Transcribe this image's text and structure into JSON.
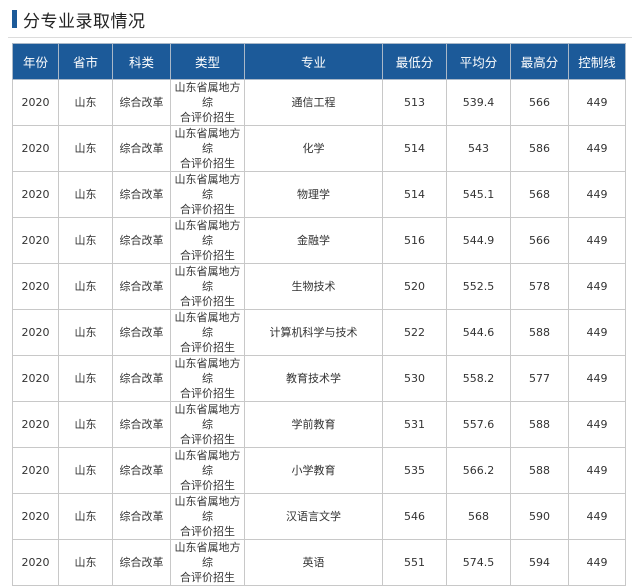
{
  "title": "分专业录取情况",
  "colors": {
    "header_bg": "#1c5a99",
    "header_text": "#ffffff",
    "accent": "#1c5a99"
  },
  "columns": [
    "年份",
    "省市",
    "科类",
    "类型",
    "专业",
    "最低分",
    "平均分",
    "最高分",
    "控制线"
  ],
  "rows": [
    [
      "2020",
      "山东",
      "综合改革",
      [
        "山东省属地方综",
        "合评价招生"
      ],
      "通信工程",
      "513",
      "539.4",
      "566",
      "449"
    ],
    [
      "2020",
      "山东",
      "综合改革",
      [
        "山东省属地方综",
        "合评价招生"
      ],
      "化学",
      "514",
      "543",
      "586",
      "449"
    ],
    [
      "2020",
      "山东",
      "综合改革",
      [
        "山东省属地方综",
        "合评价招生"
      ],
      "物理学",
      "514",
      "545.1",
      "568",
      "449"
    ],
    [
      "2020",
      "山东",
      "综合改革",
      [
        "山东省属地方综",
        "合评价招生"
      ],
      "金融学",
      "516",
      "544.9",
      "566",
      "449"
    ],
    [
      "2020",
      "山东",
      "综合改革",
      [
        "山东省属地方综",
        "合评价招生"
      ],
      "生物技术",
      "520",
      "552.5",
      "578",
      "449"
    ],
    [
      "2020",
      "山东",
      "综合改革",
      [
        "山东省属地方综",
        "合评价招生"
      ],
      "计算机科学与技术",
      "522",
      "544.6",
      "588",
      "449"
    ],
    [
      "2020",
      "山东",
      "综合改革",
      [
        "山东省属地方综",
        "合评价招生"
      ],
      "教育技术学",
      "530",
      "558.2",
      "577",
      "449"
    ],
    [
      "2020",
      "山东",
      "综合改革",
      [
        "山东省属地方综",
        "合评价招生"
      ],
      "学前教育",
      "531",
      "557.6",
      "588",
      "449"
    ],
    [
      "2020",
      "山东",
      "综合改革",
      [
        "山东省属地方综",
        "合评价招生"
      ],
      "小学教育",
      "535",
      "566.2",
      "588",
      "449"
    ],
    [
      "2020",
      "山东",
      "综合改革",
      [
        "山东省属地方综",
        "合评价招生"
      ],
      "汉语言文学",
      "546",
      "568",
      "590",
      "449"
    ],
    [
      "2020",
      "山东",
      "综合改革",
      [
        "山东省属地方综",
        "合评价招生"
      ],
      "英语",
      "551",
      "574.5",
      "594",
      "449"
    ]
  ]
}
